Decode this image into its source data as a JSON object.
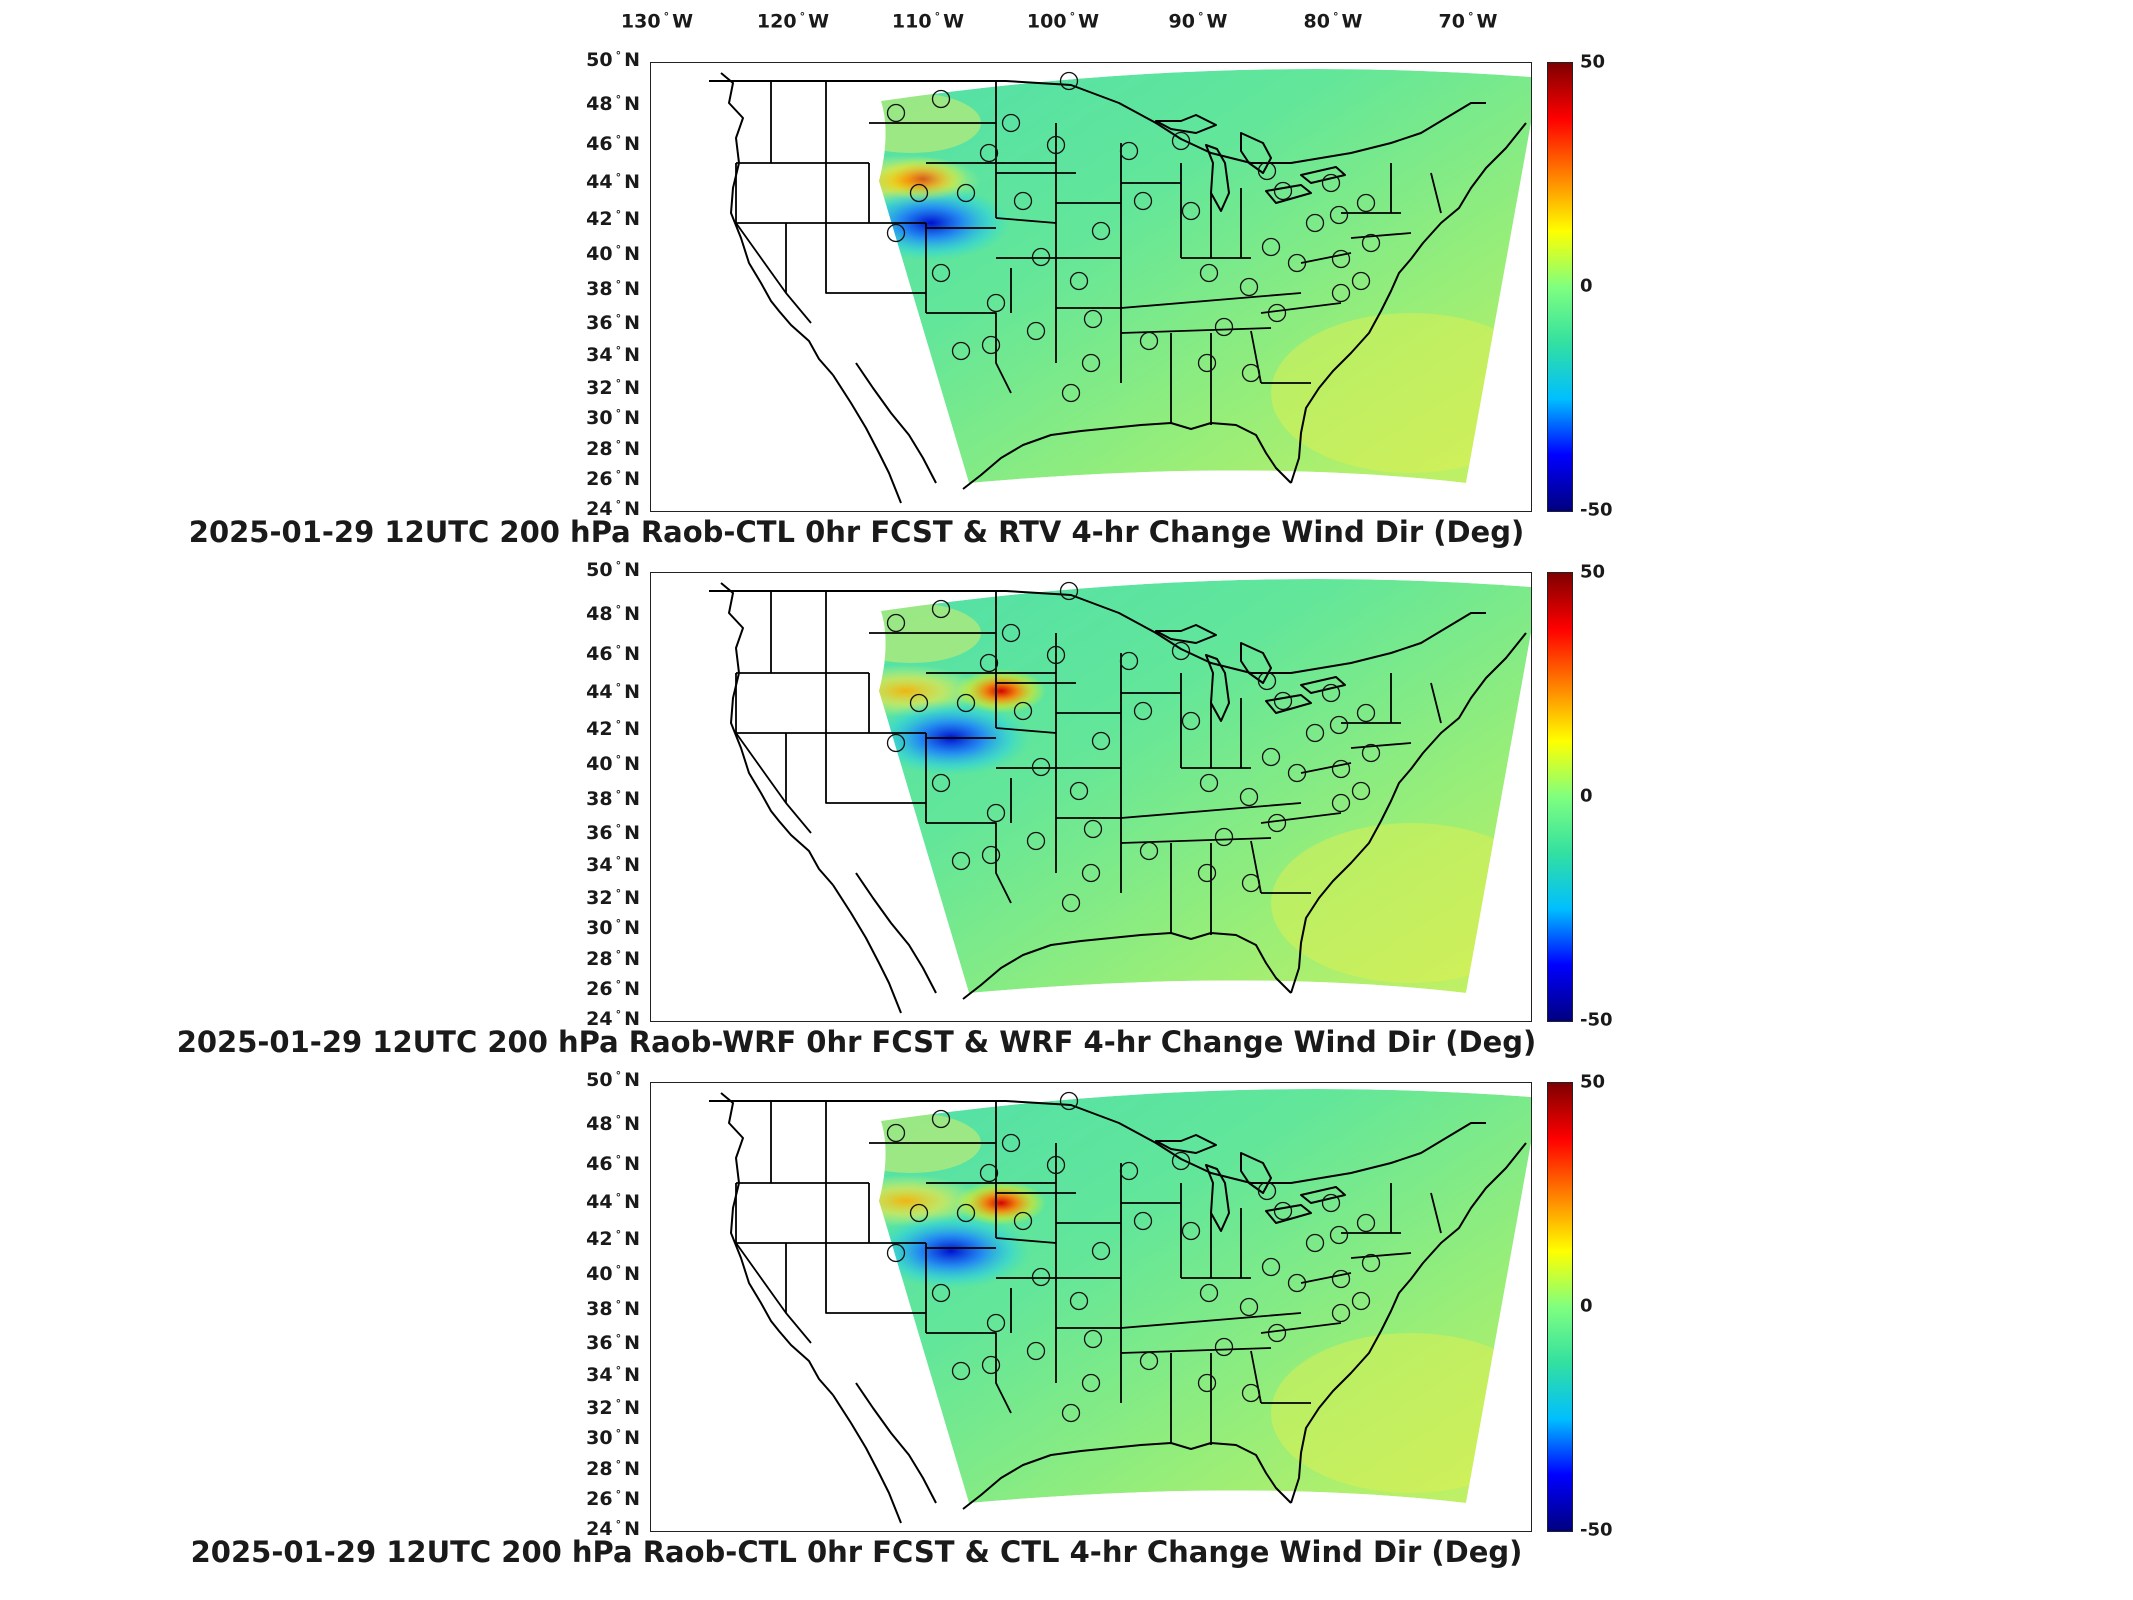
{
  "longitude_labels": [
    {
      "deg": "130",
      "dir": "W"
    },
    {
      "deg": "120",
      "dir": "W"
    },
    {
      "deg": "110",
      "dir": "W"
    },
    {
      "deg": "100",
      "dir": "W"
    },
    {
      "deg": "90",
      "dir": "W"
    },
    {
      "deg": "80",
      "dir": "W"
    },
    {
      "deg": "70",
      "dir": "W"
    }
  ],
  "latitude_labels": [
    {
      "deg": "50",
      "dir": "N"
    },
    {
      "deg": "48",
      "dir": "N"
    },
    {
      "deg": "46",
      "dir": "N"
    },
    {
      "deg": "44",
      "dir": "N"
    },
    {
      "deg": "42",
      "dir": "N"
    },
    {
      "deg": "40",
      "dir": "N"
    },
    {
      "deg": "38",
      "dir": "N"
    },
    {
      "deg": "36",
      "dir": "N"
    },
    {
      "deg": "34",
      "dir": "N"
    },
    {
      "deg": "32",
      "dir": "N"
    },
    {
      "deg": "30",
      "dir": "N"
    },
    {
      "deg": "28",
      "dir": "N"
    },
    {
      "deg": "26",
      "dir": "N"
    },
    {
      "deg": "24",
      "dir": "N"
    }
  ],
  "colorbar": {
    "max": "50",
    "mid": "0",
    "min": "-50",
    "colors": [
      "#00007f",
      "#0000ff",
      "#00bfff",
      "#33e0a0",
      "#7fff7f",
      "#ffff00",
      "#ff8000",
      "#ff0000",
      "#7f0000"
    ]
  },
  "panels": [
    {
      "title": "2025-01-29 12UTC 200 hPa Raob-CTL 0hr FCST & RTV 4-hr Change Wind Dir (Deg)"
    },
    {
      "title": "2025-01-29 12UTC 200 hPa Raob-WRF 0hr FCST & WRF 4-hr Change Wind Dir (Deg)"
    },
    {
      "title": "2025-01-29 12UTC 200 hPa Raob-CTL 0hr FCST & CTL 4-hr Change Wind Dir (Deg)"
    }
  ]
}
